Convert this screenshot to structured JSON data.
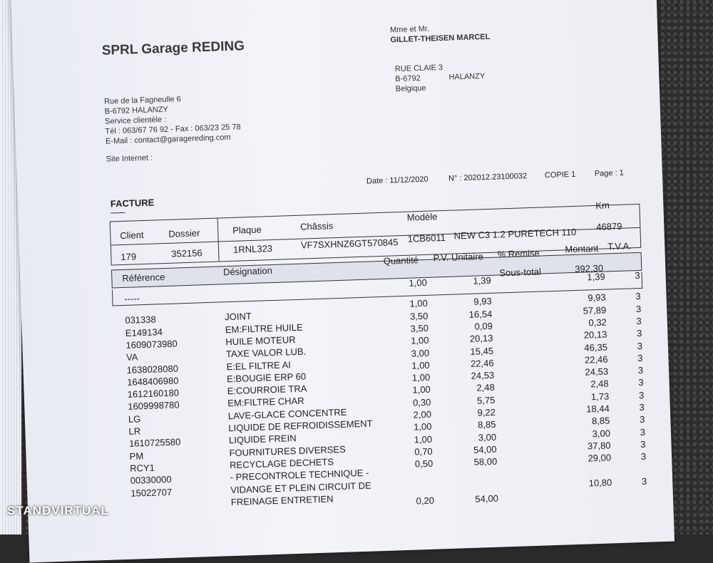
{
  "company": {
    "name": "SPRL Garage REDING",
    "address": [
      "Rue de la Fagneulle 6",
      "B-6792   HALANZY",
      "Service clientèle :",
      "Tél : 063/67 76 92 - Fax : 063/23 25 78",
      "E-Mail : contact@garagereding.com"
    ],
    "site": "Site Internet :"
  },
  "client": {
    "salutation": "Mme et Mr.",
    "name": "GILLET-THEISEN MARCEL",
    "street": "RUE CLAIE 3",
    "postcode": "B-6792",
    "city": "HALANZY",
    "country": "Belgique"
  },
  "meta": {
    "date": "Date : 11/12/2020",
    "number": "N° : 202012.23100032",
    "copy": "COPIE 1",
    "page": "Page : 1"
  },
  "title": "FACTURE",
  "header": {
    "labels": {
      "client": "Client",
      "dossier": "Dossier",
      "plaque": "Plaque",
      "chassis": "Châssis",
      "modele": "Modèle",
      "km": "Km"
    },
    "values": {
      "client": "179",
      "dossier": "352156",
      "plaque": "1RNL323",
      "chassis": "VF7SXHNZ6GT570845",
      "code": "1CB6011",
      "modele": "NEW C3 1.2 PURETECH 110",
      "km": "46879"
    }
  },
  "columns": {
    "reference": "Référence",
    "designation": "Désignation",
    "quantite": "Quantité",
    "pu": "P.V. Unitaire",
    "remise": "% Remise",
    "montant": "Montant",
    "tva": "T.V.A."
  },
  "subtotal": {
    "label": "Sous-total",
    "value": "392,30"
  },
  "separator": "-----",
  "lines": [
    {
      "ref": "",
      "des": "",
      "qty": "1,00",
      "pu": "1,39",
      "montant": "1,39",
      "tva": "3"
    },
    {
      "ref": "031338",
      "des": "JOINT",
      "qty": "1,00",
      "pu": "9,93",
      "montant": "9,93",
      "tva": "3"
    },
    {
      "ref": "E149134",
      "des": "EM:FILTRE HUILE",
      "qty": "3,50",
      "pu": "16,54",
      "montant": "57,89",
      "tva": "3"
    },
    {
      "ref": "1609073980",
      "des": "HUILE MOTEUR",
      "qty": "3,50",
      "pu": "0,09",
      "montant": "0,32",
      "tva": "3"
    },
    {
      "ref": "VA",
      "des": "TAXE VALOR LUB.",
      "qty": "1,00",
      "pu": "20,13",
      "montant": "20,13",
      "tva": "3"
    },
    {
      "ref": "1638028080",
      "des": "E:EL FILTRE AI",
      "qty": "3,00",
      "pu": "15,45",
      "montant": "46,35",
      "tva": "3"
    },
    {
      "ref": "1648406980",
      "des": "E:BOUGIE ERP 60",
      "qty": "1,00",
      "pu": "22,46",
      "montant": "22,46",
      "tva": "3"
    },
    {
      "ref": "1612160180",
      "des": "E:COURROIE TRA",
      "qty": "1,00",
      "pu": "24,53",
      "montant": "24,53",
      "tva": "3"
    },
    {
      "ref": "1609998780",
      "des": "EM:FILTRE CHAR",
      "qty": "1,00",
      "pu": "2,48",
      "montant": "2,48",
      "tva": "3"
    },
    {
      "ref": "LG",
      "des": "LAVE-GLACE CONCENTRE",
      "qty": "0,30",
      "pu": "5,75",
      "montant": "1,73",
      "tva": "3"
    },
    {
      "ref": "LR",
      "des": "LIQUIDE DE REFROIDISSEMENT",
      "qty": "2,00",
      "pu": "9,22",
      "montant": "18,44",
      "tva": "3"
    },
    {
      "ref": "1610725580",
      "des": "LIQUIDE FREIN",
      "qty": "1,00",
      "pu": "8,85",
      "montant": "8,85",
      "tva": "3"
    },
    {
      "ref": "PM",
      "des": "FOURNITURES DIVERSES",
      "qty": "1,00",
      "pu": "3,00",
      "montant": "3,00",
      "tva": "3"
    },
    {
      "ref": "RCY1",
      "des": "RECYCLAGE DECHETS",
      "qty": "0,70",
      "pu": "54,00",
      "montant": "37,80",
      "tva": "3"
    },
    {
      "ref": "00330000",
      "des": "- PRECONTROLE TECHNIQUE -",
      "qty": "0,50",
      "pu": "58,00",
      "montant": "29,00",
      "tva": "3"
    },
    {
      "ref": "15022707",
      "des": "VIDANGE ET PLEIN CIRCUIT DE",
      "qty": "",
      "pu": "",
      "montant": "",
      "tva": ""
    },
    {
      "ref": "",
      "des": "FREINAGE ENTRETIEN",
      "qty": "",
      "pu": "",
      "montant": "10,80",
      "tva": "3"
    },
    {
      "ref": "",
      "des": "",
      "qty": "0,20",
      "pu": "54,00",
      "montant": "",
      "tva": ""
    }
  ],
  "watermark": "STANDVIRTUAL"
}
